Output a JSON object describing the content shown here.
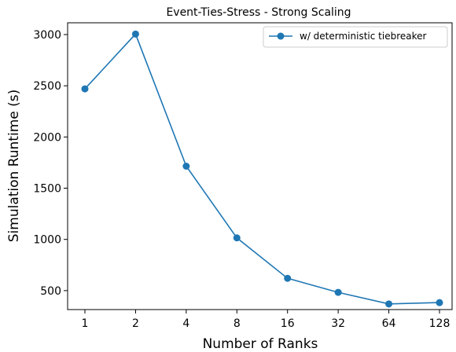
{
  "chart_data": {
    "type": "line",
    "title": "Event-Ties-Stress - Strong Scaling",
    "xlabel": "Number of Ranks",
    "ylabel": "Simulation Runtime (s)",
    "categories": [
      "1",
      "2",
      "4",
      "8",
      "16",
      "32",
      "64",
      "128"
    ],
    "y_ticks": [
      "500",
      "1000",
      "1500",
      "2000",
      "2500",
      "3000"
    ],
    "ylim": [
      315,
      3115
    ],
    "series": [
      {
        "name": "w/ deterministic tiebreaker",
        "values": [
          2470,
          3005,
          1715,
          1015,
          620,
          483,
          370,
          383
        ],
        "color": "#1f77b4",
        "marker": "circle"
      }
    ],
    "legend_position": "top-right",
    "grid": false
  }
}
